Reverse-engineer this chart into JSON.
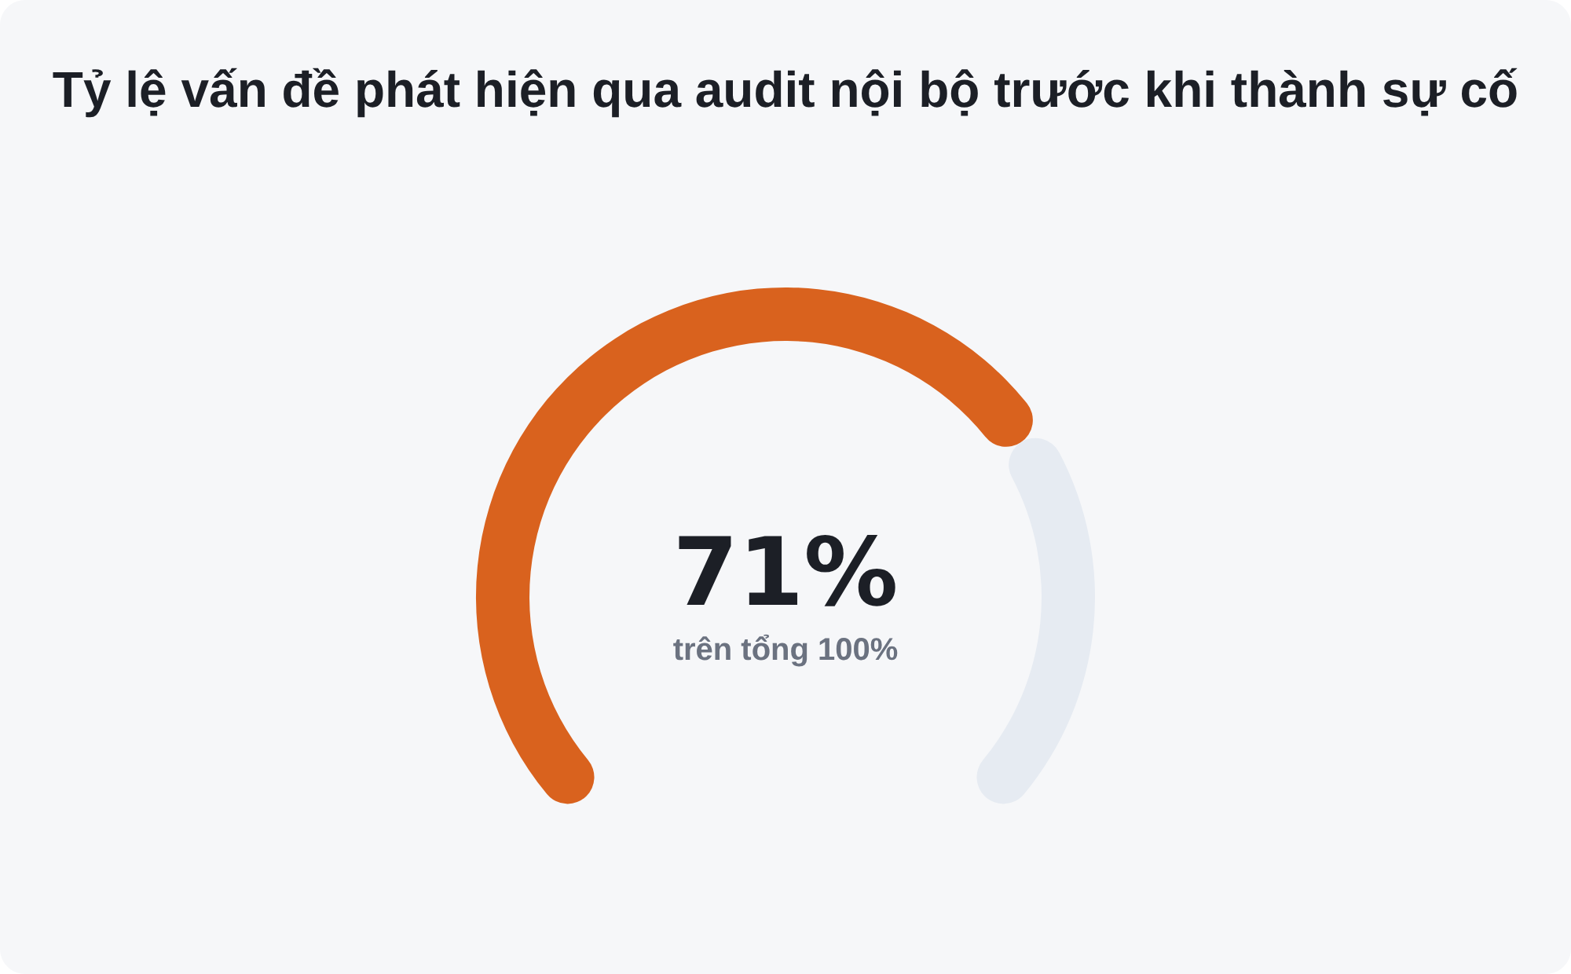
{
  "chart_data": {
    "type": "donut",
    "title": "Tỷ lệ vấn đề phát hiện qua audit nội bộ trước khi thành sự cố",
    "categories": [
      null,
      null
    ],
    "values": [
      71,
      29
    ],
    "colors": [
      "#d9621e",
      "#e6ebf2"
    ],
    "value_labels": [
      "71%",
      null
    ],
    "annotations": [
      "trên tổng 100%"
    ]
  }
}
